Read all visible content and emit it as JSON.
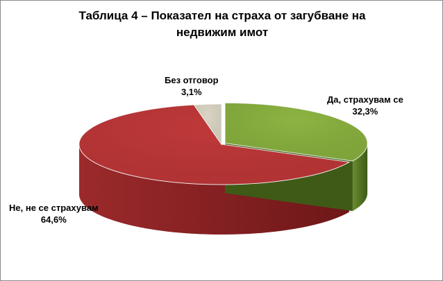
{
  "chart_data": {
    "type": "pie",
    "title": "Таблица 4 – Показател на страха от загубване на недвижим имот",
    "title_lines": [
      "Таблица 4 – Показател на страха от загубване на",
      "недвижим имот"
    ],
    "slices": [
      {
        "name": "Да, страхувам се",
        "value": 32.3,
        "label": "32,3%",
        "color": "#8db542",
        "side_color": "#3f5a17",
        "exploded": true
      },
      {
        "name": "Не, не се страхувам",
        "value": 64.6,
        "label": "64,6%",
        "color": "#c0393a",
        "side_color": "#6e1719",
        "exploded": false
      },
      {
        "name": "Без отговор",
        "value": 3.1,
        "label": "3,1%",
        "color": "#d9d4c4",
        "side_color": "#8c8778",
        "exploded": false
      }
    ],
    "style": "3d-pie"
  }
}
